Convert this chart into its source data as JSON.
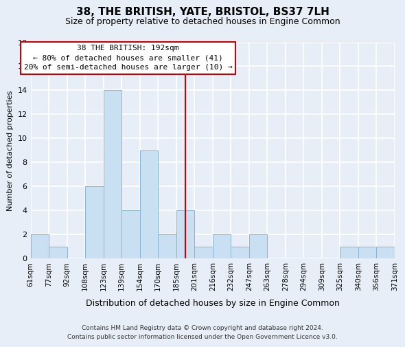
{
  "title": "38, THE BRITISH, YATE, BRISTOL, BS37 7LH",
  "subtitle": "Size of property relative to detached houses in Engine Common",
  "xlabel": "Distribution of detached houses by size in Engine Common",
  "ylabel": "Number of detached properties",
  "bin_labels": [
    "61sqm",
    "77sqm",
    "92sqm",
    "108sqm",
    "123sqm",
    "139sqm",
    "154sqm",
    "170sqm",
    "185sqm",
    "201sqm",
    "216sqm",
    "232sqm",
    "247sqm",
    "263sqm",
    "278sqm",
    "294sqm",
    "309sqm",
    "325sqm",
    "340sqm",
    "356sqm",
    "371sqm"
  ],
  "bar_heights": [
    2,
    1,
    0,
    6,
    14,
    4,
    9,
    2,
    4,
    1,
    2,
    1,
    2,
    0,
    0,
    0,
    0,
    1,
    1,
    1
  ],
  "bar_color": "#c9dff2",
  "bar_edge_color": "#8ab4d4",
  "vline_x": 8.5,
  "vline_color": "#cc0000",
  "ylim": [
    0,
    18
  ],
  "yticks": [
    0,
    2,
    4,
    6,
    8,
    10,
    12,
    14,
    16,
    18
  ],
  "annotation_title": "38 THE BRITISH: 192sqm",
  "annotation_line1": "← 80% of detached houses are smaller (41)",
  "annotation_line2": "20% of semi-detached houses are larger (10) →",
  "annotation_box_color": "#ffffff",
  "annotation_box_edge": "#cc0000",
  "footer_line1": "Contains HM Land Registry data © Crown copyright and database right 2024.",
  "footer_line2": "Contains public sector information licensed under the Open Government Licence v3.0.",
  "background_color": "#e8eef8",
  "plot_background_color": "#e8eef8",
  "grid_color": "#ffffff",
  "title_fontsize": 11,
  "subtitle_fontsize": 9,
  "ylabel_fontsize": 8,
  "xlabel_fontsize": 9,
  "tick_fontsize": 7.5,
  "footer_fontsize": 6.5
}
